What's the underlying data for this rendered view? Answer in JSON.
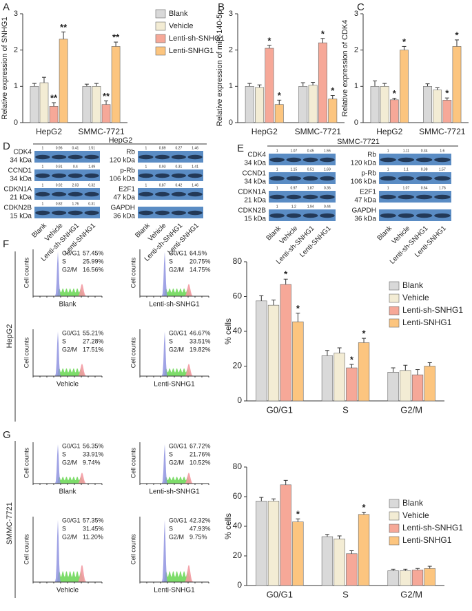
{
  "panel_letters": [
    "A",
    "B",
    "C",
    "D",
    "E",
    "F",
    "G"
  ],
  "chart_data": [
    {
      "type": "bar",
      "y_label": "Relative expression of SNHG1",
      "categories": [
        "HepG2",
        "SMMC-7721"
      ],
      "ylim": [
        0,
        3
      ],
      "yticks": [
        0,
        1,
        2,
        3
      ],
      "legend": "right",
      "series": [
        {
          "name": "Blank",
          "color": "#d9d9d9",
          "values": [
            1.0,
            1.0
          ],
          "errors": [
            0.08,
            0.06
          ]
        },
        {
          "name": "Vehicle",
          "color": "#f3ecd4",
          "values": [
            1.1,
            1.0
          ],
          "errors": [
            0.15,
            0.08
          ]
        },
        {
          "name": "Lenti-sh-SNHG1",
          "color": "#f6a898",
          "values": [
            0.45,
            0.5
          ],
          "errors": [
            0.1,
            0.1
          ],
          "sig": [
            "**",
            "**"
          ]
        },
        {
          "name": "Lenti-SNHG1",
          "color": "#fcc57f",
          "values": [
            2.3,
            2.1
          ],
          "errors": [
            0.2,
            0.12
          ],
          "sig": [
            "**",
            "**"
          ]
        }
      ]
    },
    {
      "type": "bar",
      "y_label": "Relative expression of miR-140-5p",
      "categories": [
        "HepG2",
        "SMMC-7721"
      ],
      "ylim": [
        0,
        3
      ],
      "yticks": [
        0,
        1,
        2,
        3
      ],
      "series": [
        {
          "color": "#d9d9d9",
          "values": [
            1.0,
            1.0
          ],
          "errors": [
            0.08,
            0.1
          ]
        },
        {
          "color": "#f3ecd4",
          "values": [
            0.97,
            1.03
          ],
          "errors": [
            0.07,
            0.08
          ]
        },
        {
          "color": "#f6a898",
          "values": [
            2.05,
            2.2
          ],
          "errors": [
            0.08,
            0.12
          ],
          "sig": [
            "*",
            "*"
          ]
        },
        {
          "color": "#fcc57f",
          "values": [
            0.5,
            0.65
          ],
          "errors": [
            0.12,
            0.1
          ],
          "sig": [
            "*",
            "*"
          ]
        }
      ]
    },
    {
      "type": "bar",
      "y_label": "Relative expression of CDK4",
      "categories": [
        "HepG2",
        "SMMC-7721"
      ],
      "ylim": [
        0,
        3
      ],
      "yticks": [
        0,
        1,
        2,
        3
      ],
      "series": [
        {
          "color": "#d9d9d9",
          "values": [
            1.0,
            1.0
          ],
          "errors": [
            0.15,
            0.07
          ]
        },
        {
          "color": "#f3ecd4",
          "values": [
            1.0,
            0.9
          ],
          "errors": [
            0.08,
            0.06
          ]
        },
        {
          "color": "#f6a898",
          "values": [
            0.63,
            0.62
          ],
          "errors": [
            0.04,
            0.06
          ],
          "sig": [
            "*",
            "*"
          ]
        },
        {
          "color": "#fcc57f",
          "values": [
            2.0,
            2.1
          ],
          "errors": [
            0.1,
            0.18
          ],
          "sig": [
            "*",
            "*"
          ]
        }
      ]
    },
    {
      "type": "bar",
      "y_label": "% cells",
      "categories": [
        "G0/G1",
        "S",
        "G2/M"
      ],
      "ylim": [
        0,
        80
      ],
      "yticks": [
        0,
        20,
        40,
        60,
        80
      ],
      "legend": "right",
      "series": [
        {
          "name": "Blank",
          "color": "#d9d9d9",
          "values": [
            57.5,
            26,
            16.5
          ],
          "errors": [
            3,
            3,
            2.5
          ]
        },
        {
          "name": "Vehicle",
          "color": "#f3ecd4",
          "values": [
            55,
            27.5,
            17.5
          ],
          "errors": [
            3,
            3,
            3
          ]
        },
        {
          "name": "Lenti-sh-SNHG1",
          "color": "#f6a898",
          "values": [
            67,
            19,
            15
          ],
          "errors": [
            3,
            2,
            3
          ],
          "sig": [
            "*",
            "*",
            null
          ]
        },
        {
          "name": "Lenti-SNHG1",
          "color": "#fcc57f",
          "values": [
            45.5,
            33.5,
            20
          ],
          "errors": [
            5,
            2.5,
            2
          ],
          "sig": [
            "*",
            "*",
            null
          ]
        }
      ]
    },
    {
      "type": "bar",
      "y_label": "% cells",
      "categories": [
        "G0/G1",
        "S",
        "G2/M"
      ],
      "ylim": [
        0,
        80
      ],
      "yticks": [
        0,
        20,
        40,
        60,
        80
      ],
      "legend": "right",
      "series": [
        {
          "name": "Blank",
          "color": "#d9d9d9",
          "values": [
            57,
            33,
            10
          ],
          "errors": [
            2.5,
            1.5,
            1
          ]
        },
        {
          "name": "Vehicle",
          "color": "#f3ecd4",
          "values": [
            57,
            31.5,
            10
          ],
          "errors": [
            1.5,
            2,
            1
          ]
        },
        {
          "name": "Lenti-sh-SNHG1",
          "color": "#f6a898",
          "values": [
            68,
            21.5,
            10.5
          ],
          "errors": [
            3,
            2,
            1
          ]
        },
        {
          "name": "Lenti-SNHG1",
          "color": "#fcc57f",
          "values": [
            43,
            48,
            11.5
          ],
          "errors": [
            2,
            1.5,
            1.5
          ],
          "sig": [
            "*",
            "*",
            null
          ]
        }
      ]
    }
  ],
  "blots": [
    {
      "title": "HepG2",
      "lanes": [
        "Blank",
        "Vehicle",
        "Lenti-sh-SNHG1",
        "Lenti-SNHG1"
      ],
      "left": [
        {
          "protein": "CDK4",
          "kda": "34 kDa",
          "quant": [
            "1",
            "0.96",
            "0.41",
            "1.51"
          ]
        },
        {
          "protein": "CCND1",
          "kda": "34 kDa",
          "quant": [
            "1",
            "0.91",
            "0.4",
            "1.49"
          ]
        },
        {
          "protein": "CDKN1A",
          "kda": "21 kDa",
          "quant": [
            "1",
            "0.92",
            "2.03",
            "0.32"
          ]
        },
        {
          "protein": "CDKN2B",
          "kda": "15 kDa",
          "quant": [
            "1",
            "0.82",
            "1.76",
            "0.31"
          ]
        }
      ],
      "right": [
        {
          "protein": "Rb",
          "kda": "120 kDa",
          "quant": [
            "1",
            "0.89",
            "0.27",
            "1.46"
          ]
        },
        {
          "protein": "p-Rb",
          "kda": "106 kDa",
          "quant": [
            "1",
            "0.93",
            "0.31",
            "1.41"
          ]
        },
        {
          "protein": "E2F1",
          "kda": "47 kDa",
          "quant": [
            "1",
            "0.87",
            "0.42",
            "1.46"
          ]
        },
        {
          "protein": "GAPDH",
          "kda": "36 kDa"
        }
      ]
    },
    {
      "title": "SMMC-7721",
      "lanes": [
        "Blank",
        "Vehicle",
        "Lenti-sh-SNHG1",
        "Lenti-SNHG1"
      ],
      "left": [
        {
          "protein": "CDK4",
          "kda": "34 kDa",
          "quant": [
            "1",
            "1.07",
            "0.45",
            "1.55"
          ]
        },
        {
          "protein": "CCND1",
          "kda": "34 kDa",
          "quant": [
            "1",
            "1.15",
            "0.51",
            "1.69"
          ]
        },
        {
          "protein": "CDKN1A",
          "kda": "21 kDa",
          "quant": [
            "1",
            "0.97",
            "1.87",
            "0.36"
          ]
        },
        {
          "protein": "CDKN2B",
          "kda": "15 kDa",
          "quant": [
            "1",
            "1.2",
            "1.94",
            "0.44"
          ]
        }
      ],
      "right": [
        {
          "protein": "Rb",
          "kda": "120 kDa",
          "quant": [
            "1",
            "1.11",
            "0.34",
            "1.6"
          ]
        },
        {
          "protein": "p-Rb",
          "kda": "106 kDa",
          "quant": [
            "1",
            "1.1",
            "0.38",
            "1.57"
          ]
        },
        {
          "protein": "E2F1",
          "kda": "47 kDa",
          "quant": [
            "1",
            "1.07",
            "0.64",
            "1.76"
          ]
        },
        {
          "protein": "GAPDH",
          "kda": "36 kDa"
        }
      ]
    }
  ],
  "flow": [
    {
      "cell_line": "HepG2",
      "y_label": "Cell counts",
      "plots": [
        {
          "name": "Blank",
          "stats": [
            {
              "phase": "G0/G1",
              "value": "57.45%"
            },
            {
              "phase": "S",
              "value": "25.99%"
            },
            {
              "phase": "G2/M",
              "value": "16.56%"
            }
          ]
        },
        {
          "name": "Lenti-sh-SNHG1",
          "stats": [
            {
              "phase": "G0/G1",
              "value": "64.5%"
            },
            {
              "phase": "S",
              "value": "20.75%"
            },
            {
              "phase": "G2/M",
              "value": "14.75%"
            }
          ]
        },
        {
          "name": "Vehicle",
          "stats": [
            {
              "phase": "G0/G1",
              "value": "55.21%"
            },
            {
              "phase": "S",
              "value": "27.28%"
            },
            {
              "phase": "G2/M",
              "value": "17.51%"
            }
          ]
        },
        {
          "name": "Lenti-SNHG1",
          "stats": [
            {
              "phase": "G0/G1",
              "value": "46.67%"
            },
            {
              "phase": "S",
              "value": "33.51%"
            },
            {
              "phase": "G2/M",
              "value": "19.82%"
            }
          ]
        }
      ]
    },
    {
      "cell_line": "SMMC-7721",
      "y_label": "Cell counts",
      "plots": [
        {
          "name": "Blank",
          "stats": [
            {
              "phase": "G0/G1",
              "value": "56.35%"
            },
            {
              "phase": "S",
              "value": "33.91%"
            },
            {
              "phase": "G2/M",
              "value": "9.74%"
            }
          ]
        },
        {
          "name": "Lenti-sh-SNHG1",
          "stats": [
            {
              "phase": "G0/G1",
              "value": "67.72%"
            },
            {
              "phase": "S",
              "value": "21.76%"
            },
            {
              "phase": "G2/M",
              "value": "10.52%"
            }
          ]
        },
        {
          "name": "Vehicle",
          "stats": [
            {
              "phase": "G0/G1",
              "value": "57.35%"
            },
            {
              "phase": "S",
              "value": "31.45%"
            },
            {
              "phase": "G2/M",
              "value": "11.20%"
            }
          ]
        },
        {
          "name": "Lenti-SNHG1",
          "stats": [
            {
              "phase": "G0/G1",
              "value": "42.32%"
            },
            {
              "phase": "S",
              "value": "47.93%"
            },
            {
              "phase": "G2/M",
              "value": "9.75%"
            }
          ]
        }
      ]
    }
  ]
}
